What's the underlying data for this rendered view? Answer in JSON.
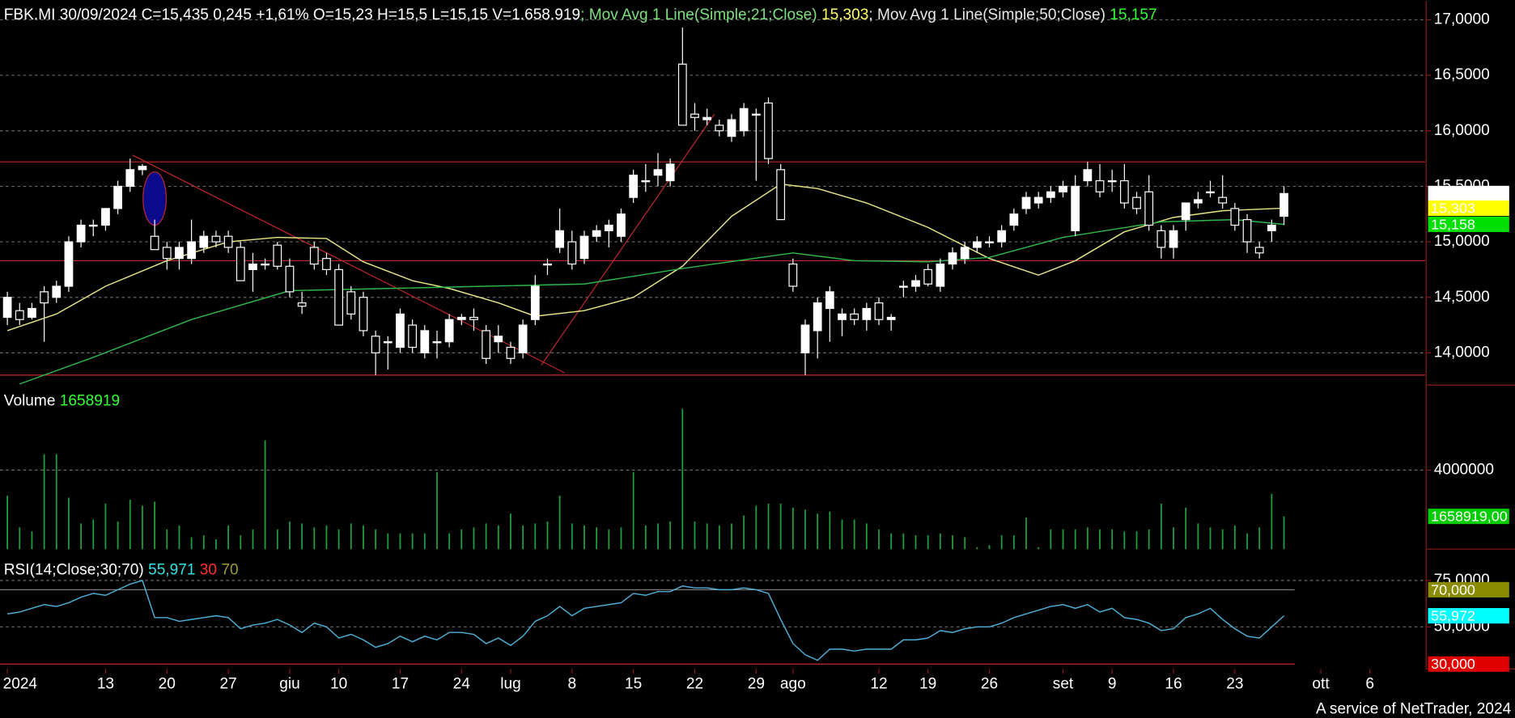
{
  "chart_data": [
    {
      "type": "candlestick",
      "header": [
        {
          "text": "FBK.MI 30/09/2024 C=15,435 0,245 +1,61% O=15,23 H=15,5 L=15,15 V=1.658.919",
          "color": "#ffffff"
        },
        {
          "text": "; Mov Avg 1 Line(Simple;21;Close)",
          "color": "#7fe07f"
        },
        {
          "text": " 15,303",
          "color": "#ffff66"
        },
        {
          "text": "; Mov Avg 1 Line(Simple;50;Close)",
          "color": "#e8e8e8"
        },
        {
          "text": " 15,157",
          "color": "#33ff33"
        }
      ],
      "ohlc": [
        [
          14.32,
          14.55,
          14.25,
          14.5
        ],
        [
          14.38,
          14.45,
          14.25,
          14.3
        ],
        [
          14.32,
          14.45,
          14.3,
          14.4
        ],
        [
          14.55,
          14.6,
          14.1,
          14.45
        ],
        [
          14.5,
          14.65,
          14.45,
          14.6
        ],
        [
          14.6,
          15.05,
          14.55,
          15.0
        ],
        [
          15.0,
          15.2,
          14.95,
          15.15
        ],
        [
          15.15,
          15.2,
          15.05,
          15.15
        ],
        [
          15.15,
          15.3,
          15.1,
          15.3
        ],
        [
          15.3,
          15.55,
          15.25,
          15.5
        ],
        [
          15.5,
          15.75,
          15.45,
          15.65
        ],
        [
          15.65,
          15.7,
          15.6,
          15.68
        ],
        [
          15.05,
          15.2,
          14.95,
          14.93
        ],
        [
          14.95,
          15.0,
          14.75,
          14.85
        ],
        [
          14.85,
          15.0,
          14.75,
          14.95
        ],
        [
          14.85,
          15.2,
          14.8,
          15.0
        ],
        [
          14.95,
          15.1,
          14.9,
          15.05
        ],
        [
          15.05,
          15.1,
          14.95,
          15.0
        ],
        [
          15.05,
          15.1,
          14.9,
          14.95
        ],
        [
          14.95,
          15.0,
          14.65,
          14.65
        ],
        [
          14.75,
          14.9,
          14.55,
          14.8
        ],
        [
          14.8,
          14.85,
          14.75,
          14.8
        ],
        [
          14.97,
          15.0,
          14.75,
          14.78
        ],
        [
          14.78,
          14.85,
          14.5,
          14.55
        ],
        [
          14.45,
          14.55,
          14.35,
          14.42
        ],
        [
          14.95,
          15.0,
          14.75,
          14.8
        ],
        [
          14.85,
          14.9,
          14.7,
          14.75
        ],
        [
          14.75,
          14.8,
          14.25,
          14.25
        ],
        [
          14.55,
          14.6,
          14.3,
          14.35
        ],
        [
          14.5,
          14.55,
          14.15,
          14.2
        ],
        [
          14.15,
          14.2,
          13.8,
          14.0
        ],
        [
          14.1,
          14.15,
          13.85,
          14.1
        ],
        [
          14.05,
          14.4,
          14.0,
          14.35
        ],
        [
          14.25,
          14.3,
          14.0,
          14.05
        ],
        [
          14.0,
          14.25,
          13.95,
          14.2
        ],
        [
          14.1,
          14.2,
          13.95,
          14.1
        ],
        [
          14.1,
          14.35,
          14.05,
          14.3
        ],
        [
          14.3,
          14.35,
          14.25,
          14.32
        ],
        [
          14.32,
          14.4,
          14.2,
          14.3
        ],
        [
          14.2,
          14.25,
          13.9,
          13.95
        ],
        [
          14.1,
          14.25,
          14.0,
          14.15
        ],
        [
          14.05,
          14.1,
          13.9,
          13.95
        ],
        [
          14.0,
          14.3,
          13.95,
          14.25
        ],
        [
          14.3,
          14.7,
          14.25,
          14.6
        ],
        [
          14.8,
          14.85,
          14.7,
          14.8
        ],
        [
          14.95,
          15.3,
          14.9,
          15.1
        ],
        [
          15.0,
          15.1,
          14.75,
          14.8
        ],
        [
          14.85,
          15.1,
          14.8,
          15.05
        ],
        [
          15.05,
          15.15,
          15.0,
          15.1
        ],
        [
          15.1,
          15.2,
          14.95,
          15.15
        ],
        [
          15.05,
          15.3,
          15.0,
          15.25
        ],
        [
          15.4,
          15.65,
          15.35,
          15.6
        ],
        [
          15.55,
          15.7,
          15.45,
          15.55
        ],
        [
          15.6,
          15.8,
          15.5,
          15.65
        ],
        [
          15.55,
          15.75,
          15.5,
          15.7
        ],
        [
          16.6,
          16.93,
          16.05,
          16.05
        ],
        [
          16.15,
          16.25,
          16.0,
          16.12
        ],
        [
          16.1,
          16.2,
          16.05,
          16.12
        ],
        [
          16.05,
          16.1,
          15.95,
          16.0
        ],
        [
          15.95,
          16.15,
          15.9,
          16.1
        ],
        [
          16.0,
          16.25,
          15.95,
          16.2
        ],
        [
          16.15,
          16.2,
          15.55,
          16.15
        ],
        [
          16.25,
          16.3,
          15.7,
          15.75
        ],
        [
          15.65,
          15.7,
          15.2,
          15.2
        ],
        [
          14.8,
          14.85,
          14.55,
          14.6
        ],
        [
          14.0,
          14.3,
          13.8,
          14.25
        ],
        [
          14.2,
          14.5,
          13.95,
          14.45
        ],
        [
          14.4,
          14.6,
          14.1,
          14.55
        ],
        [
          14.3,
          14.4,
          14.15,
          14.35
        ],
        [
          14.35,
          14.4,
          14.25,
          14.3
        ],
        [
          14.3,
          14.45,
          14.2,
          14.4
        ],
        [
          14.45,
          14.5,
          14.25,
          14.3
        ],
        [
          14.3,
          14.35,
          14.2,
          14.32
        ],
        [
          14.6,
          14.65,
          14.5,
          14.6
        ],
        [
          14.6,
          14.7,
          14.55,
          14.65
        ],
        [
          14.75,
          14.8,
          14.6,
          14.62
        ],
        [
          14.6,
          14.85,
          14.55,
          14.8
        ],
        [
          14.8,
          14.95,
          14.75,
          14.9
        ],
        [
          14.85,
          15.0,
          14.8,
          14.95
        ],
        [
          14.95,
          15.05,
          14.9,
          15.0
        ],
        [
          15.0,
          15.05,
          14.95,
          15.0
        ],
        [
          15.0,
          15.15,
          14.95,
          15.1
        ],
        [
          15.15,
          15.3,
          15.1,
          15.25
        ],
        [
          15.3,
          15.45,
          15.25,
          15.4
        ],
        [
          15.35,
          15.45,
          15.3,
          15.4
        ],
        [
          15.4,
          15.5,
          15.35,
          15.45
        ],
        [
          15.45,
          15.55,
          15.4,
          15.5
        ],
        [
          15.1,
          15.6,
          15.05,
          15.5
        ],
        [
          15.55,
          15.72,
          15.5,
          15.65
        ],
        [
          15.55,
          15.7,
          15.4,
          15.45
        ],
        [
          15.55,
          15.65,
          15.45,
          15.55
        ],
        [
          15.55,
          15.7,
          15.3,
          15.35
        ],
        [
          15.4,
          15.45,
          15.25,
          15.3
        ],
        [
          15.45,
          15.6,
          15.1,
          15.15
        ],
        [
          15.1,
          15.15,
          14.85,
          14.95
        ],
        [
          14.95,
          15.15,
          14.85,
          15.1
        ],
        [
          15.2,
          15.35,
          15.1,
          15.35
        ],
        [
          15.35,
          15.45,
          15.3,
          15.38
        ],
        [
          15.45,
          15.55,
          15.4,
          15.45
        ],
        [
          15.4,
          15.6,
          15.3,
          15.35
        ],
        [
          15.3,
          15.35,
          15.1,
          15.15
        ],
        [
          15.2,
          15.25,
          14.9,
          15.0
        ],
        [
          14.95,
          15.0,
          14.85,
          14.9
        ],
        [
          15.1,
          15.2,
          15.0,
          15.15
        ],
        [
          15.23,
          15.5,
          15.15,
          15.435
        ]
      ],
      "up_color": "#ffffff",
      "down_color": "#000000",
      "wick_color": "#ffffff",
      "lines": [
        {
          "color": "#e6e68a",
          "x": [
            0,
            4,
            8,
            13,
            18,
            22,
            26,
            29,
            33,
            36,
            40,
            43,
            47,
            51,
            55,
            59,
            63,
            66,
            70,
            75,
            80,
            84,
            87,
            91,
            95,
            99,
            104
          ],
          "values": [
            14.2,
            14.35,
            14.6,
            14.83,
            15.0,
            15.04,
            15.03,
            14.82,
            14.65,
            14.58,
            14.45,
            14.33,
            14.38,
            14.5,
            14.78,
            15.23,
            15.52,
            15.48,
            15.35,
            15.13,
            14.85,
            14.7,
            14.83,
            15.09,
            15.22,
            15.28,
            15.303
          ]
        },
        {
          "color": "#2fb84a",
          "x": [
            1,
            7,
            15,
            23,
            31,
            39,
            47,
            55,
            64,
            69,
            75,
            80,
            86,
            94,
            100,
            104
          ],
          "values": [
            13.72,
            13.96,
            14.3,
            14.56,
            14.58,
            14.6,
            14.62,
            14.76,
            14.9,
            14.83,
            14.82,
            14.86,
            15.04,
            15.18,
            15.2,
            15.157
          ]
        }
      ],
      "hlines": {
        "values": [
          15.72,
          14.83,
          13.8
        ],
        "color": "#c0282d"
      },
      "trendlines": {
        "color": "#c0282d",
        "items": [
          {
            "x": [
              10.2,
              45.4
            ],
            "values": [
              15.78,
              13.82
            ]
          },
          {
            "x": [
              43.5,
              57.6
            ],
            "values": [
              13.89,
              16.15
            ]
          }
        ]
      },
      "ellipse": {
        "x": 12,
        "values": [
          15.15,
          15.63
        ],
        "fill": "#0a0a8a",
        "stroke": "#c0282d"
      },
      "xlim": [
        -0.6,
        115.5
      ],
      "ylim": [
        13.71,
        17.17
      ],
      "yticks": [
        {
          "value": 14,
          "label": "14,0000"
        },
        {
          "value": 14.5,
          "label": "14,5000"
        },
        {
          "value": 15,
          "label": "15,0000"
        },
        {
          "value": 15.5,
          "label": "15,5000"
        },
        {
          "value": 16,
          "label": "16,0000"
        },
        {
          "value": 16.5,
          "label": "16,5000"
        },
        {
          "value": 17,
          "label": "17,0000"
        }
      ],
      "grid": true,
      "value_tags": [
        {
          "value": 15.435,
          "label": "15,4350",
          "color": "#ffffff",
          "text_color": "#000000"
        },
        {
          "value": 15.303,
          "label": "15,303",
          "color": "#ffff00",
          "text_color": "#000000"
        },
        {
          "value": 15.158,
          "label": "15,158",
          "color": "#00e000",
          "text_color": "#000000"
        }
      ]
    },
    {
      "type": "bar",
      "header": [
        {
          "text": "Volume",
          "color": "#ffffff"
        },
        {
          "text": " 1658919",
          "color": "#33ff33"
        }
      ],
      "values": [
        2700000,
        1100000,
        900000,
        4800000,
        4800000,
        2600000,
        1300000,
        1500000,
        2300000,
        1400000,
        2500000,
        2200000,
        2400000,
        1000000,
        1200000,
        600000,
        700000,
        500000,
        1200000,
        700000,
        1000000,
        5500000,
        1000000,
        1400000,
        1300000,
        1100000,
        1200000,
        1000000,
        1300000,
        1200000,
        1000000,
        800000,
        800000,
        800000,
        800000,
        3900000,
        800000,
        1000000,
        1100000,
        1300000,
        1200000,
        1800000,
        1200000,
        1300000,
        1400000,
        2700000,
        1300000,
        1200000,
        1100000,
        1000000,
        1100000,
        3900000,
        1200000,
        1300000,
        1400000,
        7100000,
        1400000,
        1300000,
        1200000,
        1300000,
        1700000,
        2200000,
        2300000,
        2300000,
        2100000,
        2000000,
        1800000,
        1900000,
        1500000,
        1500000,
        1300000,
        1000000,
        800000,
        800000,
        700000,
        700000,
        800000,
        700000,
        600000,
        100000,
        200000,
        700000,
        700000,
        1600000,
        100000,
        1000000,
        1000000,
        1000000,
        1100000,
        1000000,
        1000000,
        900000,
        900000,
        1000000,
        2300000,
        1100000,
        2100000,
        1300000,
        1100000,
        1000000,
        1200000,
        800000,
        1100000,
        2800000,
        1658919
      ],
      "color": "#1f9e3c",
      "xlim": [
        -0.6,
        115.5
      ],
      "ylim": [
        0,
        8200000
      ],
      "yticks": [
        4000000
      ],
      "grid": true,
      "value_tags": [
        {
          "value": 1658919,
          "label": "1658919,00",
          "color": "#00cc00",
          "text_color": "#ffffff"
        }
      ]
    },
    {
      "type": "line",
      "header": [
        {
          "text": "RSI(14;Close;30;70)",
          "color": "#ffffff"
        },
        {
          "text": " 55,971",
          "color": "#33e0e0"
        },
        {
          "text": " 30",
          "color": "#ff3030"
        },
        {
          "text": " 70",
          "color": "#9a9a30"
        }
      ],
      "values": [
        57,
        58,
        60,
        62,
        61,
        63,
        66,
        68,
        67,
        70,
        73,
        75,
        55,
        55,
        53,
        54,
        55,
        56,
        55,
        49,
        51,
        52,
        54,
        51,
        47,
        52,
        50,
        44,
        46,
        43,
        39,
        41,
        45,
        42,
        45,
        43,
        47,
        47,
        46,
        41,
        44,
        40,
        45,
        53,
        56,
        61,
        56,
        60,
        61,
        62,
        63,
        68,
        67,
        69,
        69,
        72,
        71,
        71,
        70,
        70,
        71,
        70,
        68,
        54,
        41,
        35,
        32,
        38,
        38,
        37,
        38,
        38,
        38,
        43,
        43,
        44,
        48,
        47,
        49,
        50,
        50,
        52,
        55,
        57,
        59,
        61,
        62,
        60,
        62,
        58,
        60,
        55,
        54,
        52,
        48,
        49,
        55,
        57,
        60,
        54,
        49,
        45,
        44,
        50,
        55.971
      ],
      "color": "#4fb0d8",
      "levels": [
        {
          "value": 70,
          "color": "#7a7a7a"
        },
        {
          "value": 30,
          "color": "#c0282d"
        }
      ],
      "xlim": [
        -0.6,
        115.5
      ],
      "ylim": [
        27.4,
        88.2
      ],
      "yticks": [
        {
          "value": 50,
          "label": "50,0000"
        },
        {
          "value": 75,
          "label": "75,0000"
        }
      ],
      "grid": true,
      "xticks": [
        {
          "value": 0,
          "label": "2024"
        },
        {
          "value": 8,
          "label": "13"
        },
        {
          "value": 13,
          "label": "20"
        },
        {
          "value": 18,
          "label": "27"
        },
        {
          "value": 23,
          "label": "giu"
        },
        {
          "value": 27,
          "label": "10"
        },
        {
          "value": 32,
          "label": "17"
        },
        {
          "value": 37,
          "label": "24"
        },
        {
          "value": 41,
          "label": "lug"
        },
        {
          "value": 46,
          "label": "8"
        },
        {
          "value": 51,
          "label": "15"
        },
        {
          "value": 56,
          "label": "22"
        },
        {
          "value": 61,
          "label": "29"
        },
        {
          "value": 64,
          "label": "ago"
        },
        {
          "value": 71,
          "label": "12"
        },
        {
          "value": 75,
          "label": "19"
        },
        {
          "value": 80,
          "label": "26"
        },
        {
          "value": 86,
          "label": "set"
        },
        {
          "value": 90,
          "label": "9"
        },
        {
          "value": 95,
          "label": "16"
        },
        {
          "value": 100,
          "label": "23"
        },
        {
          "value": 107,
          "label": "ott"
        },
        {
          "value": 111,
          "label": "6"
        }
      ],
      "value_tags": [
        {
          "value": 70,
          "label": "70,000",
          "color": "#8b8b00",
          "text_color": "#ffffff"
        },
        {
          "value": 55.972,
          "label": "55,972",
          "color": "#00ffff",
          "text_color": "#000000"
        },
        {
          "value": 30,
          "label": "30,000",
          "color": "#e00000",
          "text_color": "#ffffff"
        }
      ]
    }
  ],
  "footer": "A service of NetTrader, 2024"
}
